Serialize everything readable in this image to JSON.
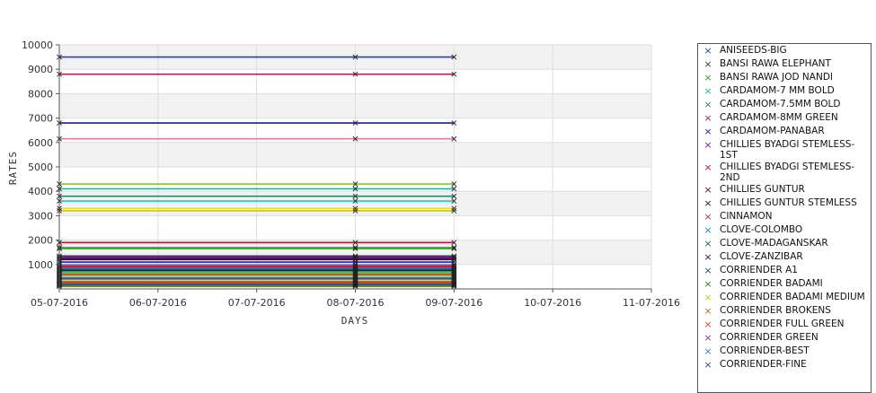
{
  "chart_data": {
    "type": "line",
    "title": "",
    "xlabel": "DAYS",
    "ylabel": "RATES",
    "ylim": [
      0,
      10000
    ],
    "yticks": [
      1000,
      2000,
      3000,
      4000,
      5000,
      6000,
      7000,
      8000,
      9000,
      10000
    ],
    "x_ticks": [
      "05-07-2016",
      "06-07-2016",
      "07-07-2016",
      "08-07-2016",
      "09-07-2016",
      "10-07-2016",
      "11-07-2016"
    ],
    "x_dates": [
      "05-07-2016",
      "08-07-2016",
      "09-07-2016"
    ],
    "grid": true,
    "legend_position": "right",
    "series": [
      {
        "name": "ANISEEDS-BIG",
        "color": "#1f3fbf",
        "values": [
          9500,
          9500,
          9500
        ]
      },
      {
        "name": "BANSI RAWA ELEPHANT",
        "color": "#3c3c3c",
        "values": [
          1350,
          1350,
          1350
        ]
      },
      {
        "name": "BANSI RAWA JOD NANDI",
        "color": "#2e9e1f",
        "values": [
          1650,
          1650,
          1650
        ]
      },
      {
        "name": "CARDAMOM-7 MM BOLD",
        "color": "#1ab5a5",
        "values": [
          4100,
          4100,
          4100
        ]
      },
      {
        "name": "CARDAMOM-7.5MM BOLD",
        "color": "#1f8a6a",
        "values": [
          3800,
          3800,
          3800
        ]
      },
      {
        "name": "CARDAMOM-8MM GREEN",
        "color": "#b02060",
        "values": [
          8800,
          8800,
          8800
        ]
      },
      {
        "name": "CARDAMOM-PANABAR",
        "color": "#1a1a9e",
        "values": [
          6800,
          6800,
          6800
        ]
      },
      {
        "name": "CHILLIES BYADGI STEMLESS-1ST",
        "color": "#7a1ab5",
        "values": [
          1300,
          1300,
          1300
        ]
      },
      {
        "name": "CHILLIES BYADGI STEMLESS-2ND",
        "color": "#b51a3a",
        "values": [
          1900,
          1900,
          1900
        ]
      },
      {
        "name": "CHILLIES GUNTUR",
        "color": "#6a0f4a",
        "values": [
          1250,
          1250,
          1250
        ]
      },
      {
        "name": "CHILLIES GUNTUR STEMLESS",
        "color": "#222222",
        "values": [
          1200,
          1200,
          1200
        ]
      },
      {
        "name": "CINNAMON",
        "color": "#c0392b",
        "values": [
          300,
          300,
          300
        ]
      },
      {
        "name": "CLOVE-COLOMBO",
        "color": "#1a8ab5",
        "values": [
          850,
          850,
          850
        ]
      },
      {
        "name": "CLOVE-MADAGANSKAR",
        "color": "#0f6a5a",
        "values": [
          800,
          800,
          800
        ]
      },
      {
        "name": "CLOVE-ZANZIBAR",
        "color": "#3a0f3a",
        "values": [
          750,
          750,
          750
        ]
      },
      {
        "name": "CORRIENDER A1",
        "color": "#0f5a6a",
        "values": [
          180,
          180,
          180
        ]
      },
      {
        "name": "CORRIENDER BADAMI",
        "color": "#2e8b2e",
        "values": [
          150,
          150,
          150
        ]
      },
      {
        "name": "CORRIENDER BADAMI MEDIUM",
        "color": "#c8c81a",
        "values": [
          3200,
          3200,
          3200
        ]
      },
      {
        "name": "CORRIENDER BROKENS",
        "color": "#a07a1a",
        "values": [
          100,
          100,
          100
        ]
      },
      {
        "name": "CORRIENDER FULL GREEN",
        "color": "#d4501a",
        "values": [
          250,
          250,
          250
        ]
      },
      {
        "name": "CORRIENDER GREEN",
        "color": "#8a3a8a",
        "values": [
          220,
          220,
          220
        ]
      },
      {
        "name": "CORRIENDER-BEST",
        "color": "#3a7aa0",
        "values": [
          200,
          200,
          200
        ]
      },
      {
        "name": "CORRIENDER-FINE",
        "color": "#2a4a8a",
        "values": [
          170,
          170,
          170
        ]
      }
    ],
    "extra_lines": [
      {
        "color": "#e07aa0",
        "values": [
          6150,
          6150,
          6150
        ]
      },
      {
        "color": "#7ad41a",
        "values": [
          4300,
          4300,
          4300
        ]
      },
      {
        "color": "#1ac8c8",
        "values": [
          3600,
          3600,
          3600
        ]
      },
      {
        "color": "#f0e01a",
        "values": [
          3300,
          3300,
          3300
        ]
      },
      {
        "color": "#2ec81a",
        "values": [
          1700,
          1700,
          1700
        ]
      },
      {
        "color": "#1a1ae0",
        "values": [
          1100,
          1100,
          1100
        ]
      },
      {
        "color": "#a0a0a0",
        "values": [
          1000,
          1000,
          1000
        ]
      },
      {
        "color": "#e01a1a",
        "values": [
          950,
          950,
          950
        ]
      },
      {
        "color": "#a01ab5",
        "values": [
          900,
          900,
          900
        ]
      },
      {
        "color": "#1ab56a",
        "values": [
          700,
          700,
          700
        ]
      },
      {
        "color": "#d4a01a",
        "values": [
          650,
          650,
          650
        ]
      },
      {
        "color": "#5a5ae0",
        "values": [
          600,
          600,
          600
        ]
      },
      {
        "color": "#e07a1a",
        "values": [
          550,
          550,
          550
        ]
      },
      {
        "color": "#7ae0e0",
        "values": [
          500,
          500,
          500
        ]
      },
      {
        "color": "#c81ac8",
        "values": [
          450,
          450,
          450
        ]
      },
      {
        "color": "#1a7a1a",
        "values": [
          400,
          400,
          400
        ]
      },
      {
        "color": "#e0c87a",
        "values": [
          350,
          350,
          350
        ]
      }
    ]
  }
}
